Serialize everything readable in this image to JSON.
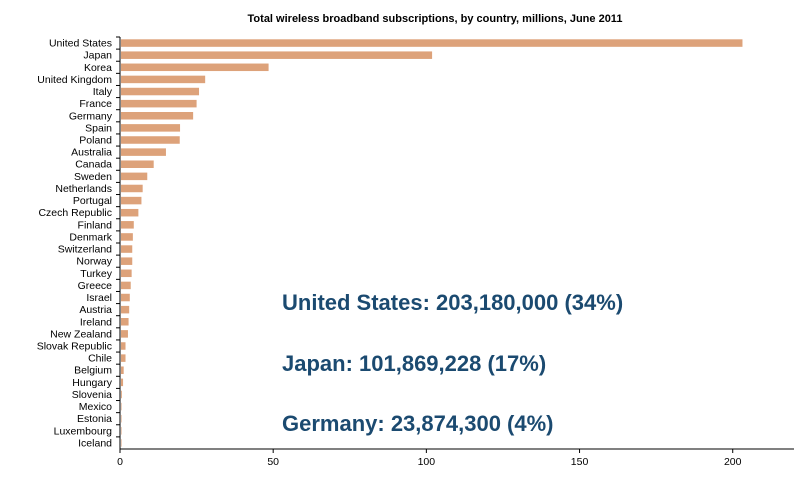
{
  "chart_data": {
    "type": "bar",
    "orientation": "horizontal",
    "title": "Total wireless broadband subscriptions, by country, millions, June 2011",
    "xlabel": "",
    "ylabel": "",
    "xlim": [
      0,
      220
    ],
    "x_ticks": [
      0,
      50,
      100,
      150,
      200
    ],
    "grid": false,
    "bar_color": "#dda27a",
    "categories": [
      "United States",
      "Japan",
      "Korea",
      "United Kingdom",
      "Italy",
      "France",
      "Germany",
      "Spain",
      "Poland",
      "Australia",
      "Canada",
      "Sweden",
      "Netherlands",
      "Portugal",
      "Czech Republic",
      "Finland",
      "Denmark",
      "Switzerland",
      "Norway",
      "Turkey",
      "Greece",
      "Israel",
      "Austria",
      "Ireland",
      "New Zealand",
      "Slovak Republic",
      "Chile",
      "Belgium",
      "Hungary",
      "Slovenia",
      "Mexico",
      "Estonia",
      "Luxembourg",
      "Iceland"
    ],
    "values": [
      203.18,
      101.87,
      48.5,
      27.8,
      25.8,
      25.0,
      23.87,
      19.6,
      19.5,
      15.0,
      11.0,
      8.9,
      7.4,
      7.0,
      6.0,
      4.5,
      4.2,
      4.0,
      4.0,
      3.8,
      3.5,
      3.2,
      3.0,
      2.8,
      2.6,
      1.8,
      1.8,
      1.2,
      1.0,
      0.6,
      0.4,
      0.3,
      0.2,
      0.1
    ]
  },
  "callouts": [
    {
      "text": "United States: 203,180,000 (34%)"
    },
    {
      "text": "Japan: 101,869,228 (17%)"
    },
    {
      "text": "Germany: 23,874,300 (4%)"
    }
  ]
}
